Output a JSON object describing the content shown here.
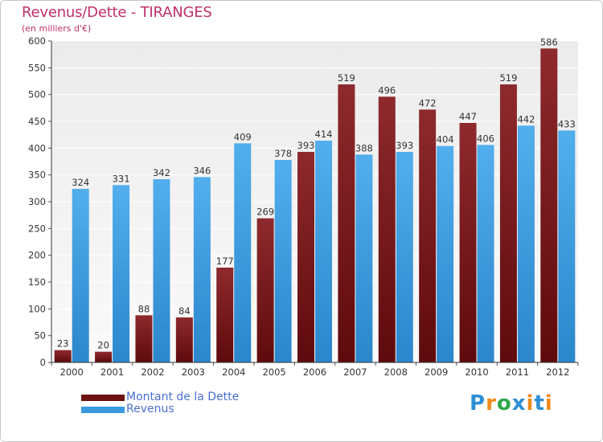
{
  "header": {
    "title": "Revenus/Dette - TIRANGES",
    "subtitle": "(en milliers d'€)"
  },
  "chart_data": {
    "type": "bar",
    "title": "Revenus/Dette - TIRANGES",
    "ylabel": "(en milliers d'€)",
    "xlabel": "",
    "categories": [
      "2000",
      "2001",
      "2002",
      "2003",
      "2004",
      "2005",
      "2006",
      "2007",
      "2008",
      "2009",
      "2010",
      "2011",
      "2012"
    ],
    "series": [
      {
        "name": "Montant de la Dette",
        "color": "#7a1a1c",
        "values": [
          23,
          20,
          88,
          84,
          177,
          269,
          393,
          519,
          496,
          472,
          447,
          519,
          586
        ]
      },
      {
        "name": "Revenus",
        "color": "#3a9ae0",
        "values": [
          324,
          331,
          342,
          346,
          409,
          378,
          414,
          388,
          393,
          404,
          406,
          442,
          433
        ]
      }
    ],
    "ylim": [
      0,
      600
    ],
    "yticks": [
      0,
      50,
      100,
      150,
      200,
      250,
      300,
      350,
      400,
      450,
      500,
      550,
      600
    ],
    "grid": true,
    "legend": "bottom-left"
  },
  "legend": {
    "items": [
      {
        "label": "Montant de la Dette",
        "color": "#6e1212"
      },
      {
        "label": "Revenus",
        "color": "#3a9ae0"
      }
    ]
  },
  "logo": {
    "text": "Proxiti",
    "colors": [
      "#2c8fd6",
      "#f08a1c",
      "#2fa84a",
      "#2c8fd6",
      "#f08a1c",
      "#2c8fd6",
      "#f08a1c"
    ]
  }
}
